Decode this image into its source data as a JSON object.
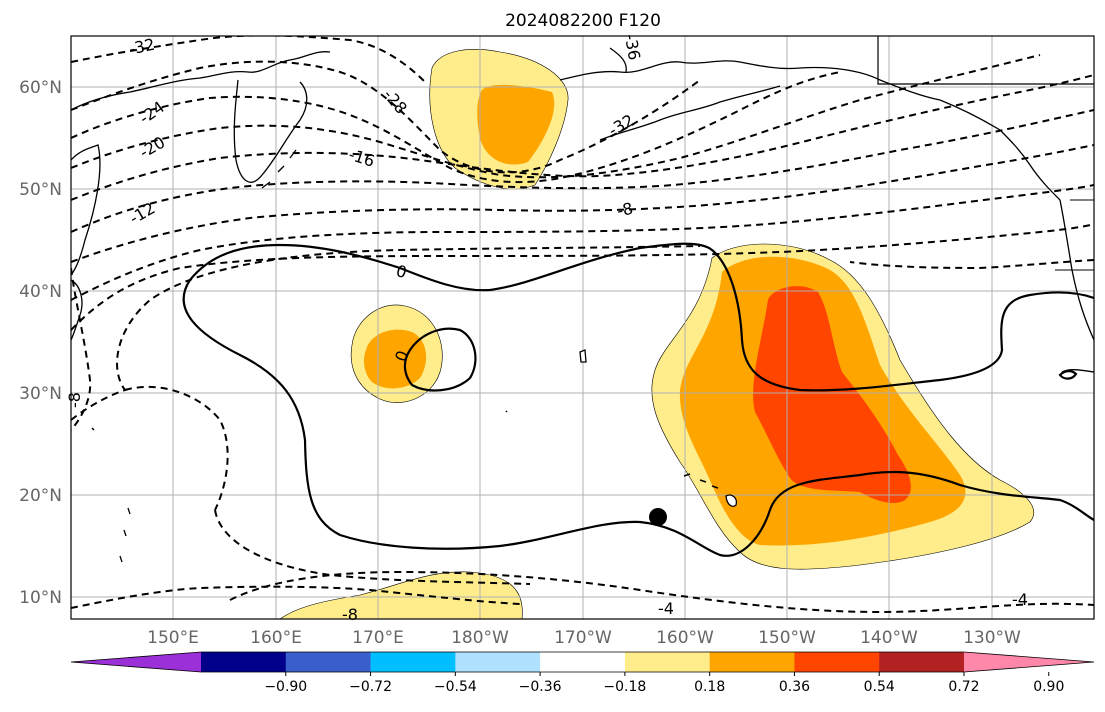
{
  "title": "2024082200 F120",
  "lat_labels": [
    "60°N",
    "50°N",
    "40°N",
    "30°N",
    "20°N",
    "10°N"
  ],
  "lon_labels": [
    "150°E",
    "160°E",
    "170°E",
    "180°W",
    "170°W",
    "160°W",
    "150°W",
    "140°W",
    "130°W"
  ],
  "contour_labels": [
    "-32",
    "-24",
    "-20",
    "-12",
    "-16",
    "-28",
    "-32",
    "-36",
    "-8",
    "0",
    "0",
    "-8",
    "-8",
    "-4",
    "-4"
  ],
  "colorbar": {
    "ticks": [
      "−0.90",
      "−0.72",
      "−0.54",
      "−0.36",
      "−0.18",
      "0.18",
      "0.36",
      "0.54",
      "0.72",
      "0.90"
    ],
    "colors": [
      "#9b30d9",
      "#00008b",
      "#3a5fcd",
      "#00bfff",
      "#b0e2ff",
      "#ffffff",
      "#ffec8b",
      "#ffa500",
      "#ff4500",
      "#b22222",
      "#ff88aa"
    ]
  },
  "shading_colors": {
    "light": "#ffec8b",
    "medium": "#ffa500",
    "strong": "#ff4500"
  },
  "marker": "storm-position-dot"
}
